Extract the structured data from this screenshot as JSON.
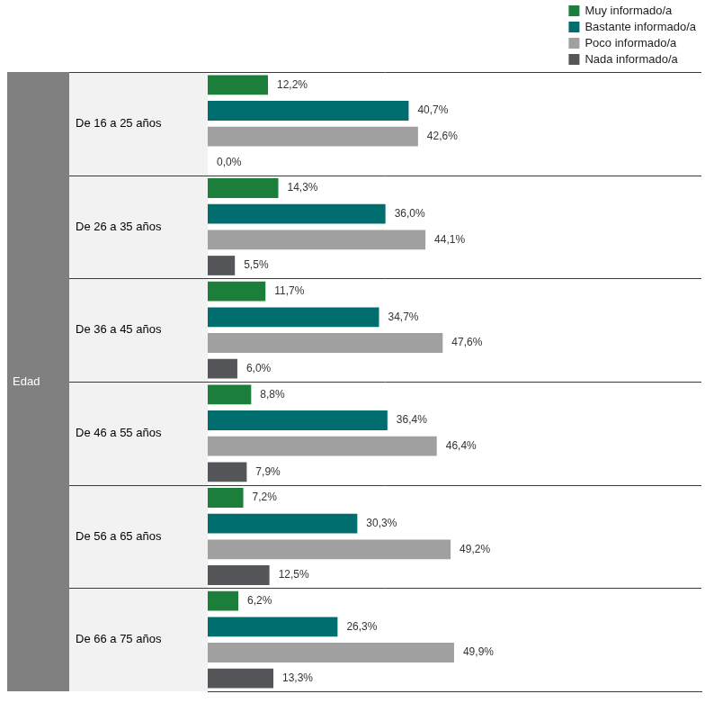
{
  "chart_data": {
    "type": "bar",
    "orientation": "horizontal",
    "y_label": "Edad",
    "categories": [
      "De 16 a 25 años",
      "De 26 a 35 años",
      "De 36 a 45 años",
      "De 46 a 55 años",
      "De 56 a 65 años",
      "De 66 a 75 años"
    ],
    "series": [
      {
        "name": "Muy informado/a",
        "color": "#1b7f3b",
        "values": [
          12.2,
          14.3,
          11.7,
          8.8,
          7.2,
          6.2
        ],
        "value_labels": [
          "12,2%",
          "14,3%",
          "11,7%",
          "8,8%",
          "7,2%",
          "6,2%"
        ]
      },
      {
        "name": "Bastante informado/a",
        "color": "#006d6f",
        "values": [
          40.7,
          36.0,
          34.7,
          36.4,
          30.3,
          26.3
        ],
        "value_labels": [
          "40,7%",
          "36,0%",
          "34,7%",
          "36,4%",
          "30,3%",
          "26,3%"
        ]
      },
      {
        "name": "Poco informado/a",
        "color": "#a0a0a0",
        "values": [
          42.6,
          44.1,
          47.6,
          46.4,
          49.2,
          49.9
        ],
        "value_labels": [
          "42,6%",
          "44,1%",
          "47,6%",
          "46,4%",
          "49,2%",
          "49,9%"
        ]
      },
      {
        "name": "Nada informado/a",
        "color": "#55565a",
        "values": [
          0.0,
          5.5,
          6.0,
          7.9,
          12.5,
          13.3
        ],
        "value_labels": [
          "0,0%",
          "5,5%",
          "6,0%",
          "7,9%",
          "12,5%",
          "13,3%"
        ]
      }
    ],
    "xlim": [
      0,
      100
    ],
    "data_labels": true,
    "legend": "top-right",
    "tick_labels": "y",
    "grid": false
  }
}
